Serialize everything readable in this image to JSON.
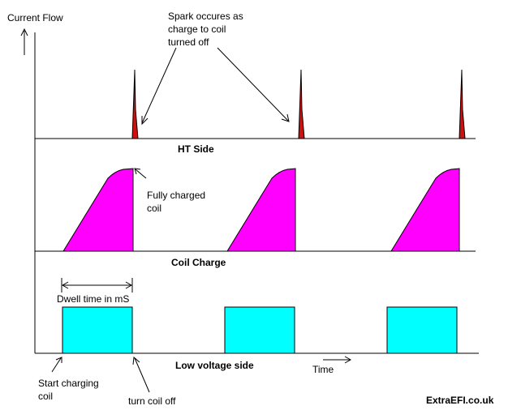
{
  "labels": {
    "current_flow": "Current Flow",
    "spark_line1": "Spark occures as",
    "spark_line2": "charge to coil",
    "spark_line3": "turned off",
    "ht_side": "HT Side",
    "fully_line1": "Fully charged",
    "fully_line2": "coil",
    "coil_charge": "Coil Charge",
    "dwell": "Dwell time in mS",
    "low_voltage_side": "Low voltage side",
    "time": "Time",
    "start_line1": "Start charging",
    "start_line2": "coil",
    "turn_off": "turn coil off",
    "brand": "ExtraEFI.co.uk"
  },
  "colors": {
    "spark": "#cc1111",
    "coil_charge": "#ff00ff",
    "low_voltage_pulse": "#00ffff",
    "line": "#000000",
    "background": "#ffffff"
  },
  "cycles": 3
}
